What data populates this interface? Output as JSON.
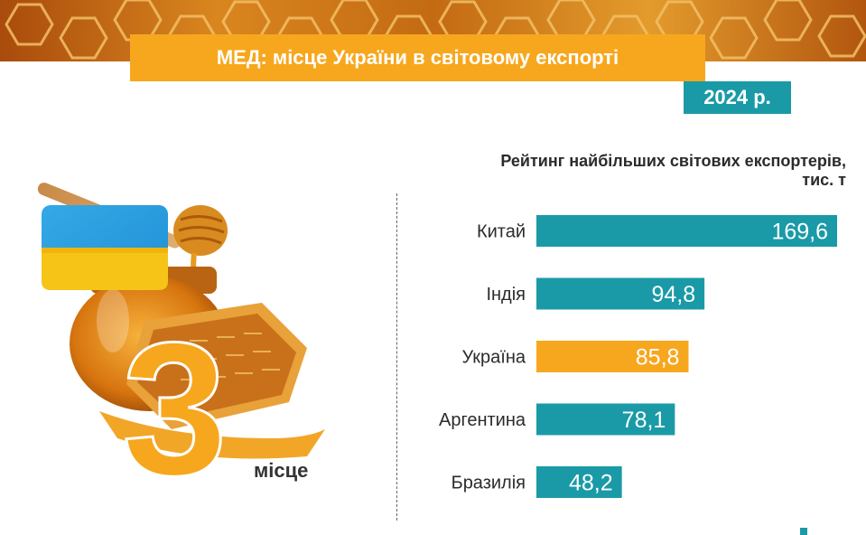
{
  "header": {
    "title": "МЕД: місце України в світовому експорті",
    "year": "2024 р."
  },
  "illustration": {
    "rank": "3",
    "rank_label": "місце",
    "flag_icon": "ukraine-flag-icon",
    "image": "honey-jar-with-honeycomb"
  },
  "colors": {
    "teal": "#1a9aa7",
    "orange": "#f7a71d"
  },
  "chart_data": {
    "type": "bar",
    "orientation": "horizontal",
    "title": "Рейтинг найбільших світових експортерів,",
    "subtitle": "тис. т",
    "categories": [
      "Китай",
      "Індія",
      "Україна",
      "Аргентина",
      "Бразилія"
    ],
    "values": [
      169.6,
      94.8,
      85.8,
      78.1,
      48.2
    ],
    "value_labels": [
      "169,6",
      "94,8",
      "85,8",
      "78,1",
      "48,2"
    ],
    "highlight": "Україна",
    "grid": false,
    "legend": "none"
  }
}
